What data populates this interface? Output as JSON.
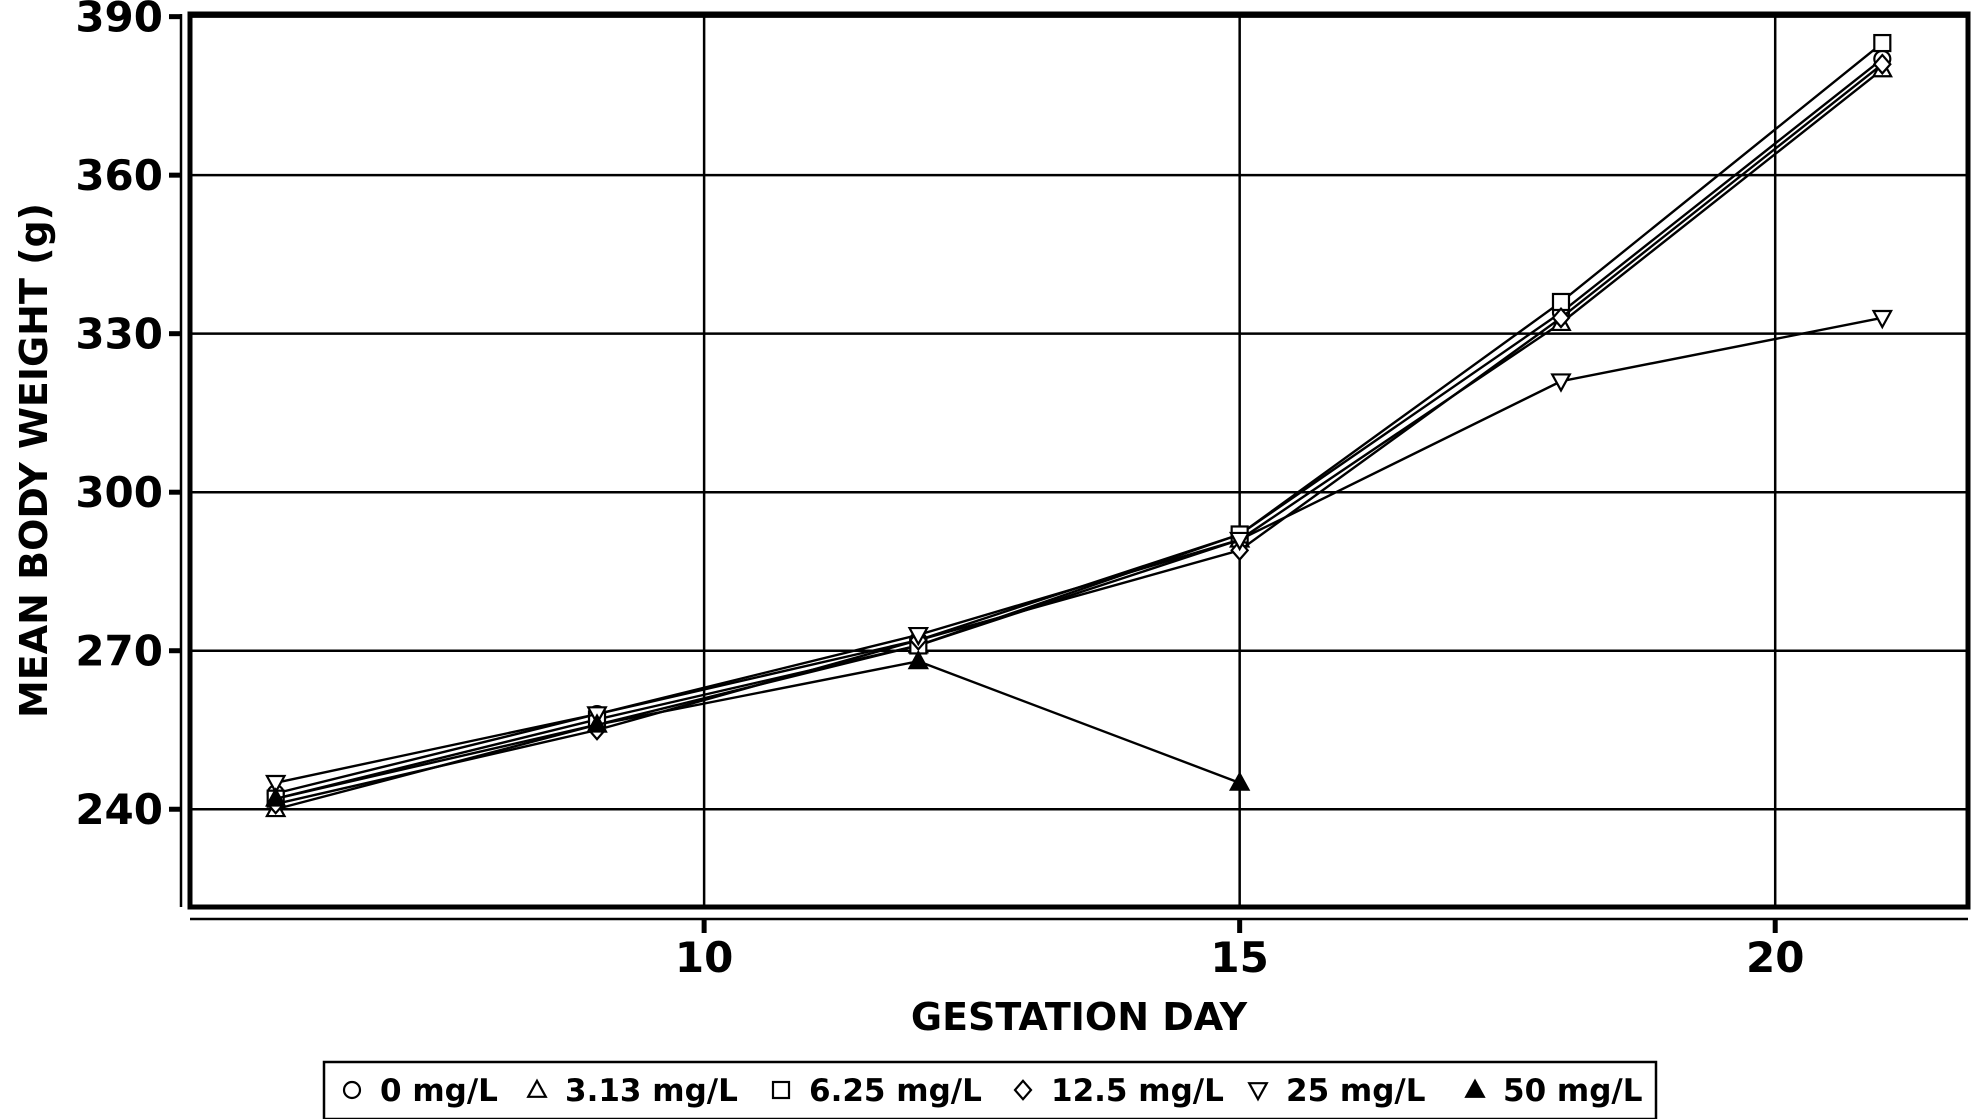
{
  "chart_data": {
    "type": "line",
    "xlabel": "GESTATION DAY",
    "ylabel": "MEAN BODY WEIGHT (g)",
    "xlim": [
      5.2,
      21.8
    ],
    "ylim": [
      221.5,
      390.5
    ],
    "x_ticks": [
      10,
      15,
      20
    ],
    "y_ticks": [
      240,
      270,
      300,
      330,
      360,
      390
    ],
    "grid": true,
    "legend_position": "bottom",
    "series": [
      {
        "name": "0 mg/L",
        "marker": "circle-open",
        "x": [
          6,
          9,
          12,
          15,
          18,
          21
        ],
        "y": [
          243,
          258,
          272,
          292,
          334,
          382
        ]
      },
      {
        "name": "3.13 mg/L",
        "marker": "triangle-up-open",
        "x": [
          6,
          9,
          12,
          15,
          18,
          21
        ],
        "y": [
          240,
          256,
          271,
          291,
          332,
          380
        ]
      },
      {
        "name": "6.25 mg/L",
        "marker": "square-open",
        "x": [
          6,
          9,
          12,
          15,
          18,
          21
        ],
        "y": [
          242,
          257,
          271,
          292,
          336,
          385
        ]
      },
      {
        "name": "12.5 mg/L",
        "marker": "diamond-open",
        "x": [
          6,
          9,
          12,
          15,
          18,
          21
        ],
        "y": [
          241,
          255,
          272,
          289,
          333,
          381
        ]
      },
      {
        "name": "25 mg/L",
        "marker": "triangle-down-open",
        "x": [
          6,
          9,
          12,
          15,
          18,
          21
        ],
        "y": [
          245,
          258,
          273,
          291,
          321,
          333
        ]
      },
      {
        "name": "50 mg/L",
        "marker": "triangle-up-filled",
        "x": [
          6,
          9,
          12,
          15
        ],
        "y": [
          242,
          256,
          268,
          245
        ]
      }
    ]
  }
}
